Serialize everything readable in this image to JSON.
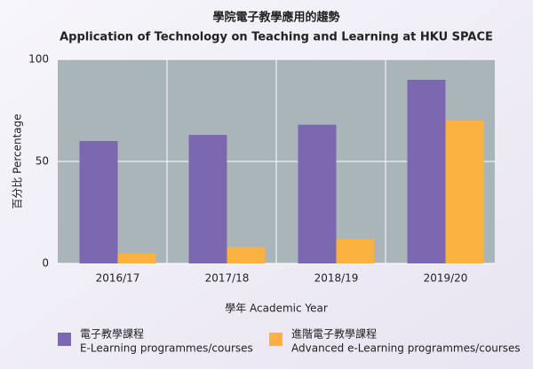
{
  "chart_data": {
    "type": "bar",
    "title": "學院電子教學應用的趨勢",
    "subtitle": "Application of Technology on Teaching and Learning at HKU SPACE",
    "y_label": "百分比 Percentage",
    "x_label": "學年 Academic Year",
    "categories": [
      "2016/17",
      "2017/18",
      "2018/19",
      "2019/20"
    ],
    "series": [
      {
        "name": "電子教學課程",
        "name_en": "E-Learning programmes/courses",
        "color": "#7c68b0",
        "values": [
          60,
          63,
          68,
          90
        ]
      },
      {
        "name": "進階電子教學課程",
        "name_en": "Advanced e-Learning programmes/courses",
        "color": "#fbb13f",
        "values": [
          5,
          8,
          12,
          70
        ]
      }
    ],
    "ylim": [
      0,
      100
    ],
    "yticks": [
      0,
      50,
      100
    ],
    "grid": true
  }
}
